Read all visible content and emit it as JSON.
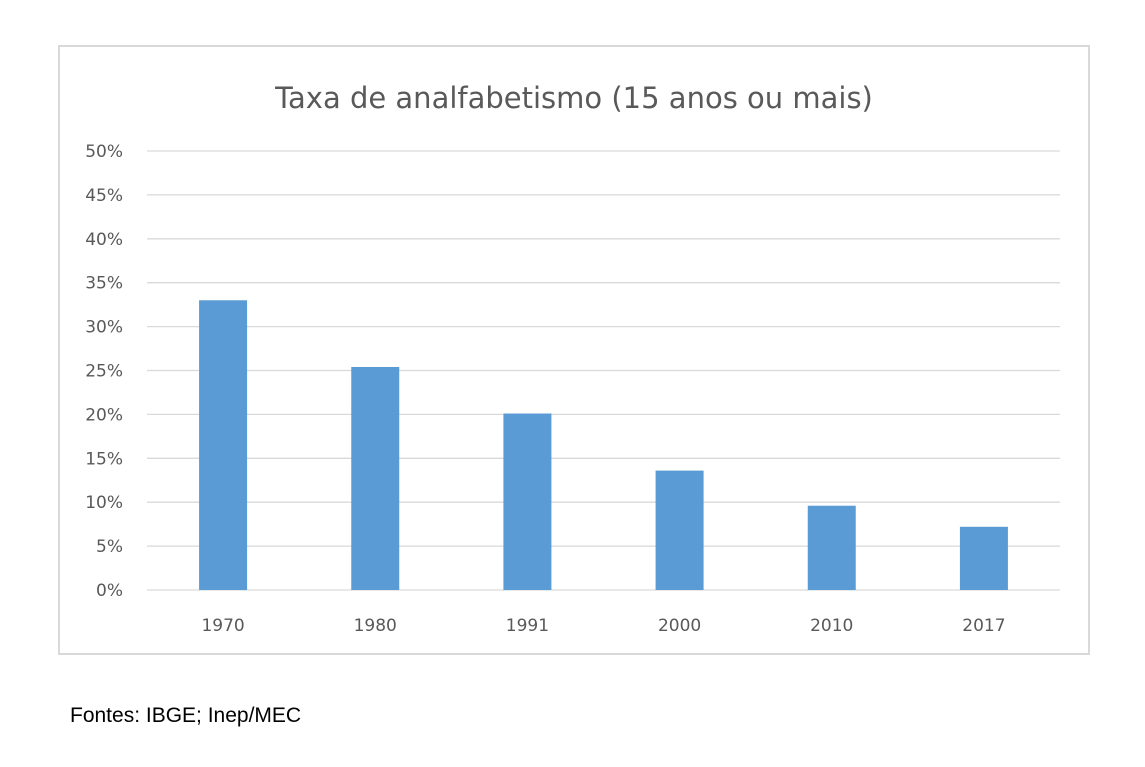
{
  "chart_data": {
    "type": "bar",
    "title": "Taxa de analfabetismo (15 anos ou mais)",
    "xlabel": "",
    "ylabel": "",
    "categories": [
      "1970",
      "1980",
      "1991",
      "2000",
      "2010",
      "2017"
    ],
    "values": [
      33.0,
      25.4,
      20.1,
      13.6,
      9.6,
      7.2
    ],
    "ylim": [
      0,
      50
    ],
    "yticks": [
      0,
      5,
      10,
      15,
      20,
      25,
      30,
      35,
      40,
      45,
      50
    ],
    "ytick_labels": [
      "0%",
      "5%",
      "10%",
      "15%",
      "20%",
      "25%",
      "30%",
      "35%",
      "40%",
      "45%",
      "50%"
    ],
    "grid": true,
    "legend": "none",
    "bar_color": "#5b9bd5"
  },
  "source_note": "Fontes: IBGE; Inep/MEC"
}
